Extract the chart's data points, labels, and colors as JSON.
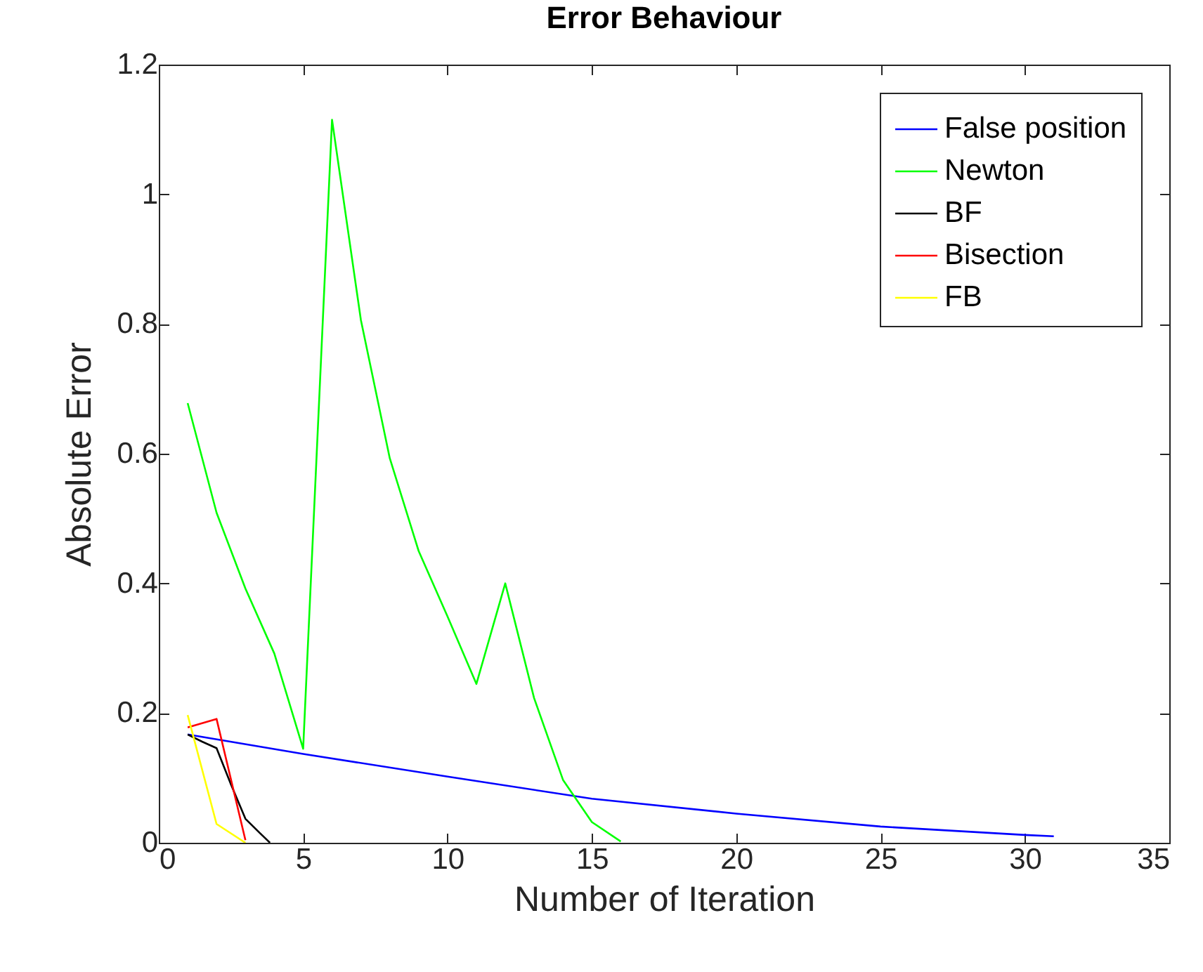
{
  "chart_data": {
    "type": "line",
    "title": "Error Behaviour",
    "xlabel": "Number of Iteration",
    "ylabel": "Absolute Error",
    "xlim": [
      0,
      35
    ],
    "xticks": [
      0,
      5,
      10,
      15,
      20,
      25,
      30,
      35
    ],
    "ylim": [
      0,
      1.2
    ],
    "yticks": [
      0,
      0.2,
      0.4,
      0.6,
      0.8,
      1,
      1.2
    ],
    "grid": false,
    "legend": "top right",
    "marker": "none",
    "line_style": "solid",
    "series": [
      {
        "name": "False position",
        "color": "#0000ff",
        "x": [
          1,
          5,
          10,
          15,
          20,
          25,
          30,
          31
        ],
        "values": [
          0.167,
          0.137,
          0.102,
          0.068,
          0.045,
          0.025,
          0.012,
          0.01
        ]
      },
      {
        "name": "Newton",
        "color": "#00ff00",
        "x": [
          1,
          2,
          3,
          4,
          5,
          6,
          7,
          8,
          9,
          10,
          11,
          12,
          13,
          14,
          15,
          16
        ],
        "values": [
          0.678,
          0.509,
          0.392,
          0.292,
          0.145,
          1.115,
          0.806,
          0.593,
          0.45,
          0.349,
          0.245,
          0.4,
          0.223,
          0.097,
          0.032,
          0.002
        ]
      },
      {
        "name": "BF",
        "color": "#000000",
        "x": [
          1,
          1.5,
          2,
          2.5,
          3,
          3.5,
          3.85
        ],
        "values": [
          0.167,
          0.156,
          0.146,
          0.09,
          0.037,
          0.015,
          0
        ]
      },
      {
        "name": "Bisection",
        "color": "#ff0000",
        "x": [
          1,
          2,
          3
        ],
        "values": [
          0.178,
          0.191,
          0.004
        ]
      },
      {
        "name": "FB",
        "color": "#ffff00",
        "x": [
          1,
          2,
          3
        ],
        "values": [
          0.197,
          0.029,
          0
        ]
      }
    ]
  }
}
